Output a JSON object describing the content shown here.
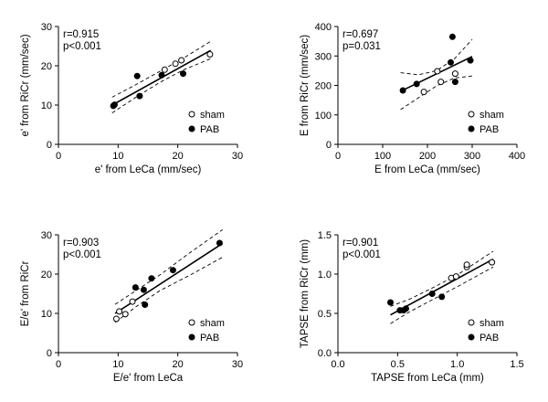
{
  "chart_data": [
    {
      "type": "scatter",
      "id": "e_prime",
      "xlabel": "e' from LeCa (mm/sec)",
      "ylabel": "e' from RiCr (mm/sec)",
      "xlim": [
        0,
        30
      ],
      "ylim": [
        0,
        30
      ],
      "xticks": [
        0,
        10,
        20,
        30
      ],
      "yticks": [
        0,
        10,
        20,
        30
      ],
      "xtick_labels": [
        "0",
        "10",
        "20",
        "30"
      ],
      "ytick_labels": [
        "0",
        "10",
        "20",
        "30"
      ],
      "stats": [
        "r=0.915",
        "p<0.001"
      ],
      "legend": [
        "sham",
        "PAB"
      ],
      "series": [
        {
          "name": "sham",
          "marker": "open-circle",
          "points": [
            [
              17.8,
              19.0
            ],
            [
              19.6,
              20.5
            ],
            [
              20.6,
              21.4
            ],
            [
              25.4,
              22.9
            ]
          ]
        },
        {
          "name": "PAB",
          "marker": "filled-circle",
          "points": [
            [
              9.2,
              9.8
            ],
            [
              9.4,
              10.1
            ],
            [
              13.2,
              17.4
            ],
            [
              13.6,
              12.3
            ],
            [
              17.3,
              17.6
            ],
            [
              20.9,
              18.0
            ]
          ]
        }
      ],
      "fit": {
        "x": [
          9,
          25.5
        ],
        "y": [
          10.0,
          23.9
        ]
      },
      "ci_upper": {
        "x": [
          9,
          13,
          17,
          21,
          25.5
        ],
        "y": [
          12.0,
          15.2,
          18.6,
          22.0,
          26.2
        ]
      },
      "ci_lower": {
        "x": [
          9,
          13,
          17,
          21,
          25.5
        ],
        "y": [
          8.0,
          12.0,
          15.8,
          19.0,
          21.8
        ]
      }
    },
    {
      "type": "scatter",
      "id": "E_wave",
      "xlabel": "E from LeCa (mm/sec)",
      "ylabel": "E from RiCr (mm/sec)",
      "xlim": [
        0,
        400
      ],
      "ylim": [
        0,
        400
      ],
      "xticks": [
        0,
        100,
        200,
        300,
        400
      ],
      "yticks": [
        0,
        100,
        200,
        300,
        400
      ],
      "xtick_labels": [
        "0",
        "100",
        "200",
        "300",
        "400"
      ],
      "ytick_labels": [
        "0",
        "100",
        "200",
        "300",
        "400"
      ],
      "stats": [
        "r=0.697",
        "p=0.031"
      ],
      "legend": [
        "sham",
        "PAB"
      ],
      "series": [
        {
          "name": "sham",
          "marker": "open-circle",
          "points": [
            [
              192,
              178
            ],
            [
              222,
              248
            ],
            [
              230,
              212
            ],
            [
              262,
              240
            ]
          ]
        },
        {
          "name": "PAB",
          "marker": "filled-circle",
          "points": [
            [
              145,
              183
            ],
            [
              176,
              205
            ],
            [
              252,
              278
            ],
            [
              256,
              365
            ],
            [
              262,
              212
            ],
            [
              296,
              285
            ]
          ]
        }
      ],
      "fit": {
        "x": [
          140,
          300
        ],
        "y": [
          180,
          298
        ]
      },
      "ci_upper": {
        "x": [
          140,
          180,
          220,
          260,
          300
        ],
        "y": [
          243,
          236,
          250,
          290,
          356
        ]
      },
      "ci_lower": {
        "x": [
          140,
          180,
          220,
          260,
          300
        ],
        "y": [
          118,
          158,
          198,
          225,
          232
        ]
      }
    },
    {
      "type": "scatter",
      "id": "E_over_e_prime",
      "xlabel": "E/e' from LeCa",
      "ylabel": "E/e' from RiCr",
      "xlim": [
        0,
        30
      ],
      "ylim": [
        0,
        30
      ],
      "xticks": [
        0,
        10,
        20,
        30
      ],
      "yticks": [
        0,
        10,
        20,
        30
      ],
      "xtick_labels": [
        "0",
        "10",
        "20",
        "30"
      ],
      "ytick_labels": [
        "0",
        "10",
        "20",
        "30"
      ],
      "stats": [
        "r=0.903",
        "p<0.001"
      ],
      "legend": [
        "sham",
        "PAB"
      ],
      "series": [
        {
          "name": "sham",
          "marker": "open-circle",
          "points": [
            [
              9.7,
              8.6
            ],
            [
              10.2,
              10.5
            ],
            [
              11.2,
              9.8
            ],
            [
              12.4,
              13.0
            ]
          ]
        },
        {
          "name": "PAB",
          "marker": "filled-circle",
          "points": [
            [
              12.9,
              16.6
            ],
            [
              14.3,
              16.0
            ],
            [
              14.5,
              12.2
            ],
            [
              15.6,
              18.9
            ],
            [
              19.2,
              21.0
            ],
            [
              27.0,
              27.9
            ]
          ]
        }
      ],
      "fit": {
        "x": [
          9.5,
          27.5
        ],
        "y": [
          10.0,
          27.8
        ]
      },
      "ci_upper": {
        "x": [
          9.5,
          13,
          17,
          22,
          27.5
        ],
        "y": [
          12.3,
          15.8,
          19.8,
          25.4,
          31.3
        ]
      },
      "ci_lower": {
        "x": [
          9.5,
          13,
          17,
          22,
          27.5
        ],
        "y": [
          7.7,
          11.7,
          15.8,
          19.7,
          24.3
        ]
      }
    },
    {
      "type": "scatter",
      "id": "TAPSE",
      "xlabel": "TAPSE from LeCa (mm)",
      "ylabel": "TAPSE from RiCr (mm)",
      "xlim": [
        0.0,
        1.5
      ],
      "ylim": [
        0.0,
        1.5
      ],
      "xticks": [
        0.0,
        0.5,
        1.0,
        1.5
      ],
      "yticks": [
        0.0,
        0.5,
        1.0,
        1.5
      ],
      "xtick_labels": [
        "0.0",
        "0.5",
        "1.0",
        "1.5"
      ],
      "ytick_labels": [
        "0.0",
        "0.5",
        "1.0",
        "1.5"
      ],
      "stats": [
        "r=0.901",
        "p<0.001"
      ],
      "legend": [
        "sham",
        "PAB"
      ],
      "series": [
        {
          "name": "sham",
          "marker": "open-circle",
          "points": [
            [
              0.95,
              0.95
            ],
            [
              0.99,
              0.97
            ],
            [
              1.08,
              1.09
            ],
            [
              1.08,
              1.12
            ],
            [
              1.29,
              1.15
            ]
          ]
        },
        {
          "name": "PAB",
          "marker": "filled-circle",
          "points": [
            [
              0.44,
              0.64
            ],
            [
              0.52,
              0.54
            ],
            [
              0.55,
              0.54
            ],
            [
              0.57,
              0.56
            ],
            [
              0.79,
              0.75
            ],
            [
              0.87,
              0.71
            ]
          ]
        }
      ],
      "fit": {
        "x": [
          0.44,
          1.3
        ],
        "y": [
          0.48,
          1.19
        ]
      },
      "ci_upper": {
        "x": [
          0.44,
          0.6,
          0.8,
          1.0,
          1.3
        ],
        "y": [
          0.59,
          0.68,
          0.83,
          0.99,
          1.29
        ]
      },
      "ci_lower": {
        "x": [
          0.44,
          0.6,
          0.8,
          1.0,
          1.3
        ],
        "y": [
          0.37,
          0.52,
          0.68,
          0.84,
          1.09
        ]
      }
    }
  ]
}
